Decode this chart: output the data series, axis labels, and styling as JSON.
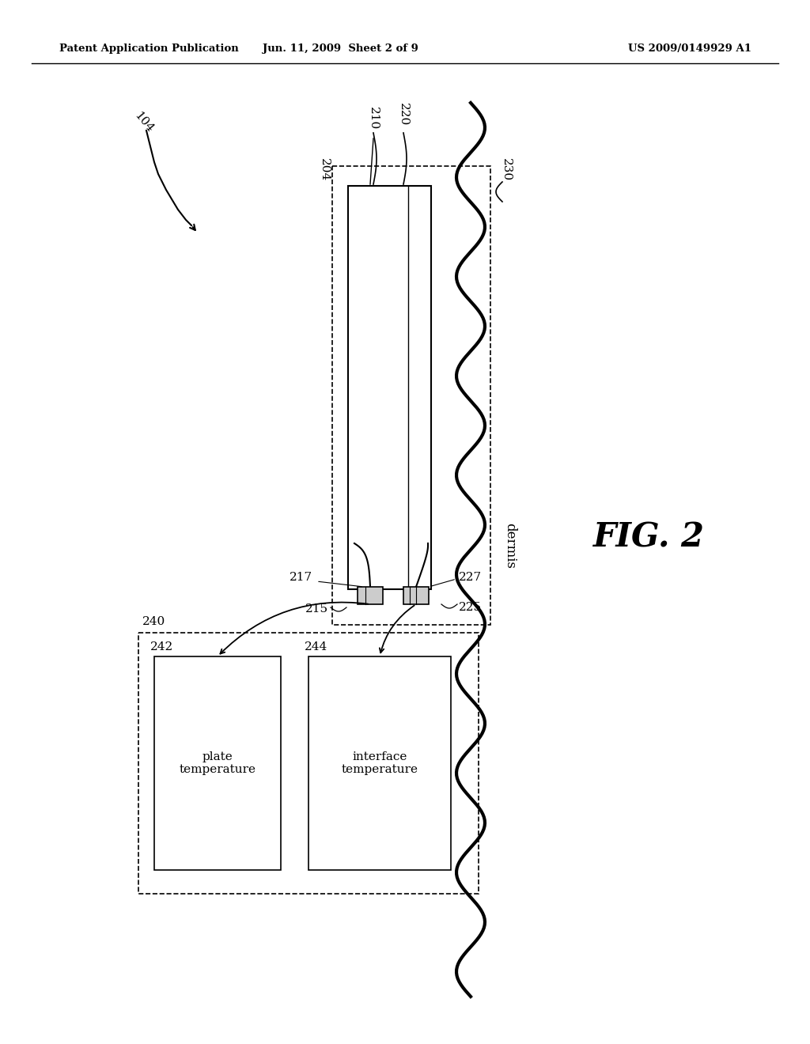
{
  "bg_color": "#ffffff",
  "header_left": "Patent Application Publication",
  "header_mid": "Jun. 11, 2009  Sheet 2 of 9",
  "header_right": "US 2009/0149929 A1",
  "fig_label": "FIG. 2"
}
